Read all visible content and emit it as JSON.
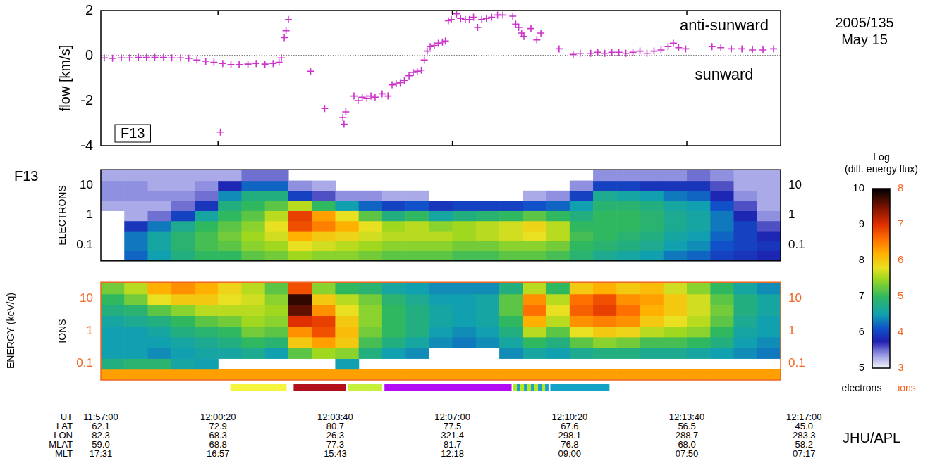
{
  "date": [
    "2005/135",
    "May 15"
  ],
  "satellite_label": "F13",
  "energy_label": "ENERGY (keV/q)",
  "credit": "JHU/APL",
  "colorbar": {
    "title": [
      "Log",
      "(diff. energy flux)"
    ]
  },
  "time_table": {
    "ticks": [
      43020,
      43220,
      43420,
      43620,
      43820,
      44020,
      44220
    ],
    "rows": [
      {
        "name": "UT",
        "labels": [
          "11:57:00",
          "12:00:20",
          "12:03:40",
          "12:07:00",
          "12:10:20",
          "12:13:40",
          "12:17:00"
        ]
      },
      {
        "name": "LAT",
        "labels": [
          "62.1",
          "72.9",
          "80.7",
          "77.5",
          "67.6",
          "56.5",
          "45.0"
        ]
      },
      {
        "name": "LON",
        "labels": [
          "82.3",
          "68.3",
          "26.3",
          "321.4",
          "298.1",
          "288.7",
          "283.3"
        ]
      },
      {
        "name": "MLAT",
        "labels": [
          "59.0",
          "68.8",
          "77.3",
          "81.7",
          "76.8",
          "68.0",
          "58.2"
        ]
      },
      {
        "name": "MLT",
        "labels": [
          "17:31",
          "16:57",
          "15:43",
          "12:18",
          "09:00",
          "07:50",
          "07:17"
        ]
      }
    ]
  },
  "chart_data": [
    {
      "type": "scatter",
      "ylabel": "flow [km/s]",
      "annotations": [
        "anti-sunward",
        "sunward"
      ],
      "hline": 0,
      "legend": "lower left",
      "grid": false,
      "tick_labels": "y",
      "xlim": [
        43020,
        44180
      ],
      "xticks": [
        43220,
        43620,
        44020
      ],
      "ylim": [
        -4,
        2
      ],
      "yticks": [
        -4,
        -2,
        0,
        2
      ],
      "series": [
        {
          "name": "F13",
          "color": "#cc33cc",
          "marker": "cross",
          "x": [
            43026,
            43040,
            43055,
            43069,
            43084,
            43098,
            43112,
            43127,
            43141,
            43156,
            43170,
            43184,
            43199,
            43213,
            43224,
            43228,
            43242,
            43256,
            43271,
            43285,
            43300,
            43314,
            43324,
            43328,
            43333,
            43336,
            43340,
            43378,
            43402,
            43433,
            43435,
            43438,
            43452,
            43459,
            43466,
            43474,
            43481,
            43488,
            43500,
            43510,
            43517,
            43524,
            43531,
            43538,
            43546,
            43553,
            43560,
            43567,
            43572,
            43577,
            43582,
            43589,
            43596,
            43603,
            43608,
            43613,
            43618,
            43620,
            43627,
            43634,
            43642,
            43649,
            43656,
            43663,
            43670,
            43678,
            43687,
            43697,
            43706,
            43723,
            43728,
            43733,
            43738,
            43742,
            43754,
            43764,
            43771,
            43802,
            43826,
            43838,
            43856,
            43868,
            43880,
            43892,
            43904,
            43916,
            43928,
            43940,
            43952,
            43964,
            43976,
            43988,
            43997,
            44006,
            44018,
            44063,
            44078,
            44096,
            44114,
            44132,
            44150,
            44168
          ],
          "values": [
            -0.1,
            -0.12,
            -0.1,
            -0.1,
            -0.08,
            -0.08,
            -0.08,
            -0.08,
            -0.1,
            -0.1,
            -0.12,
            -0.2,
            -0.25,
            -0.3,
            -3.4,
            -0.35,
            -0.4,
            -0.4,
            -0.38,
            -0.35,
            -0.38,
            -0.35,
            -0.3,
            -0.1,
            0.8,
            1.1,
            1.6,
            -0.7,
            -2.35,
            -2.75,
            -3.05,
            -2.5,
            -1.8,
            -2.0,
            -1.85,
            -1.9,
            -1.8,
            -1.85,
            -1.7,
            -1.8,
            -1.3,
            -1.25,
            -1.2,
            -1.1,
            -0.9,
            -0.75,
            -0.7,
            -0.65,
            -0.2,
            0.2,
            0.4,
            0.45,
            0.55,
            0.6,
            0.65,
            1.55,
            1.6,
            2.0,
            1.85,
            1.65,
            1.6,
            1.6,
            1.7,
            1.25,
            1.6,
            1.65,
            1.7,
            1.8,
            1.8,
            1.75,
            1.4,
            1.25,
            1.0,
            0.85,
            1.2,
            0.7,
            1.0,
            0.3,
            0.05,
            0.1,
            0.1,
            0.15,
            0.1,
            0.15,
            0.15,
            0.1,
            0.15,
            0.2,
            0.1,
            0.2,
            0.25,
            0.4,
            0.55,
            0.35,
            0.3,
            0.4,
            0.35,
            0.3,
            0.3,
            0.25,
            0.25,
            0.3
          ]
        }
      ]
    },
    {
      "type": "heatmap",
      "ylabel": "ELECTRONS",
      "color": "#000000",
      "log": "y",
      "grid": false,
      "tick_labels": "y",
      "xlim": [
        43020,
        44180
      ],
      "ylim": [
        0.03,
        32
      ],
      "yticks": [
        0.1,
        1,
        10
      ],
      "y2lim": [
        0.03,
        32
      ],
      "y2ticks": [
        0.1,
        1,
        10
      ],
      "time_edges": [
        43020,
        43060,
        43100,
        43140,
        43180,
        43220,
        43260,
        43300,
        43340,
        43380,
        43420,
        43460,
        43500,
        43540,
        43580,
        43620,
        43660,
        43700,
        43740,
        43780,
        43820,
        43860,
        43900,
        43940,
        43980,
        44020,
        44060,
        44100,
        44140,
        44180
      ],
      "energy_edges": [
        0.03,
        0.065,
        0.14,
        0.3,
        0.65,
        1.4,
        3,
        6.5,
        14,
        32
      ],
      "cells": [
        [
          null,
          null,
          null,
          null,
          null,
          5.3,
          5.4,
          5.4,
          5.3
        ],
        [
          6.2,
          6.3,
          6.3,
          5.9,
          5.3,
          5.3,
          5.4,
          5.4,
          5.3
        ],
        [
          6.5,
          6.6,
          6.6,
          6.3,
          5.5,
          5.3,
          5.4,
          5.3,
          5.3
        ],
        [
          6.8,
          6.9,
          6.9,
          6.7,
          6.0,
          5.5,
          5.4,
          5.3,
          5.3
        ],
        [
          7.0,
          7.1,
          7.1,
          7.0,
          6.6,
          5.9,
          5.5,
          5.4,
          5.3
        ],
        [
          7.0,
          7.2,
          7.3,
          7.2,
          7.0,
          6.8,
          6.4,
          5.8,
          5.3
        ],
        [
          7.2,
          7.4,
          7.5,
          7.4,
          7.2,
          7.0,
          6.8,
          6.2,
          5.5
        ],
        [
          7.3,
          7.5,
          7.7,
          7.8,
          7.6,
          7.2,
          6.8,
          6.2,
          5.5
        ],
        [
          7.5,
          7.8,
          8.2,
          8.8,
          8.9,
          7.6,
          6.0,
          5.4,
          null
        ],
        [
          7.4,
          7.7,
          8.0,
          8.5,
          8.3,
          7.0,
          5.6,
          5.3,
          null
        ],
        [
          7.4,
          7.6,
          7.9,
          8.2,
          7.8,
          6.5,
          5.4,
          null,
          null
        ],
        [
          7.3,
          7.5,
          7.7,
          7.8,
          7.2,
          6.2,
          5.4,
          null,
          null
        ],
        [
          7.2,
          7.4,
          7.6,
          7.5,
          6.8,
          6.0,
          5.3,
          null,
          null
        ],
        [
          7.2,
          7.4,
          7.6,
          7.6,
          7.0,
          6.1,
          5.3,
          null,
          null
        ],
        [
          7.2,
          7.4,
          7.6,
          7.4,
          6.6,
          5.9,
          null,
          null,
          null
        ],
        [
          7.1,
          7.3,
          7.5,
          7.5,
          6.8,
          6.0,
          null,
          null,
          null
        ],
        [
          7.1,
          7.3,
          7.6,
          7.6,
          6.9,
          6.0,
          null,
          null,
          null
        ],
        [
          7.2,
          7.4,
          7.7,
          7.7,
          7.0,
          6.0,
          null,
          null,
          null
        ],
        [
          7.2,
          7.4,
          7.8,
          7.9,
          7.2,
          6.1,
          5.3,
          null,
          null
        ],
        [
          7.1,
          7.3,
          7.6,
          7.6,
          7.0,
          6.2,
          5.4,
          null,
          null
        ],
        [
          6.9,
          7.0,
          7.1,
          7.0,
          6.8,
          6.5,
          6.0,
          5.4,
          null
        ],
        [
          6.7,
          6.9,
          7.0,
          7.0,
          7.0,
          6.9,
          6.7,
          6.0,
          5.4
        ],
        [
          6.6,
          6.8,
          6.9,
          7.0,
          7.0,
          6.9,
          6.6,
          6.0,
          5.4
        ],
        [
          6.5,
          6.7,
          6.8,
          6.9,
          6.9,
          6.8,
          6.5,
          5.9,
          5.4
        ],
        [
          6.3,
          6.5,
          6.6,
          6.7,
          6.7,
          6.6,
          6.3,
          5.9,
          5.4
        ],
        [
          6.2,
          6.4,
          6.5,
          6.6,
          6.6,
          6.5,
          6.2,
          5.9,
          5.5
        ],
        [
          6.0,
          6.1,
          6.2,
          6.3,
          6.3,
          6.1,
          5.8,
          5.6,
          5.4
        ],
        [
          5.9,
          6.0,
          6.0,
          6.0,
          5.8,
          5.6,
          5.4,
          5.3,
          5.3
        ],
        [
          5.8,
          5.9,
          5.8,
          5.6,
          5.4,
          5.3,
          5.3,
          5.3,
          5.3
        ]
      ],
      "color_range": [
        5,
        10
      ],
      "color_ticks": [
        5,
        6,
        7,
        8,
        9,
        10
      ],
      "color_label": "electrons"
    },
    {
      "type": "heatmap",
      "ylabel": "IONS",
      "color": "#f26522",
      "log": "y",
      "grid": false,
      "tick_labels": "y",
      "xlim": [
        43020,
        44180
      ],
      "ylim": [
        0.03,
        32
      ],
      "yticks": [
        0.1,
        1,
        10
      ],
      "y2lim": [
        0.03,
        32
      ],
      "y2ticks": [
        0.1,
        1,
        10
      ],
      "time_edges": [
        43020,
        43060,
        43100,
        43140,
        43180,
        43220,
        43260,
        43300,
        43340,
        43380,
        43420,
        43460,
        43500,
        43540,
        43580,
        43620,
        43660,
        43700,
        43740,
        43780,
        43820,
        43860,
        43900,
        43940,
        43980,
        44020,
        44060,
        44100,
        44140,
        44180
      ],
      "energy_edges": [
        0.03,
        0.065,
        0.14,
        0.3,
        0.65,
        1.4,
        3,
        6.5,
        14,
        32
      ],
      "cells": [
        [
          6.3,
          4.8,
          4.5,
          4.5,
          4.5,
          4.6,
          4.8,
          5.0,
          5.3
        ],
        [
          6.3,
          4.9,
          4.5,
          4.5,
          4.5,
          4.7,
          4.9,
          5.3,
          5.6
        ],
        [
          6.3,
          4.9,
          4.4,
          4.5,
          4.6,
          4.8,
          5.2,
          5.8,
          6.2
        ],
        [
          6.3,
          4.6,
          4.5,
          4.6,
          4.8,
          5.0,
          5.4,
          6.0,
          6.4
        ],
        [
          6.3,
          4.5,
          4.6,
          4.7,
          4.9,
          5.2,
          5.6,
          6.0,
          6.2
        ],
        [
          6.3,
          null,
          4.6,
          4.8,
          5.0,
          5.3,
          5.6,
          5.8,
          5.9
        ],
        [
          6.3,
          null,
          4.7,
          5.0,
          5.3,
          5.5,
          5.6,
          5.7,
          5.6
        ],
        [
          6.3,
          null,
          4.5,
          4.9,
          5.2,
          5.4,
          5.5,
          5.4,
          5.2
        ],
        [
          6.3,
          null,
          5.2,
          6.0,
          6.4,
          7.0,
          7.6,
          7.8,
          6.8
        ],
        [
          6.3,
          null,
          5.5,
          6.3,
          6.8,
          6.9,
          6.4,
          6.0,
          5.4
        ],
        [
          6.3,
          4.5,
          5.4,
          6.0,
          6.1,
          6.0,
          5.8,
          5.6,
          5.0
        ],
        [
          6.3,
          null,
          4.8,
          5.1,
          5.3,
          5.4,
          5.4,
          5.3,
          4.9
        ],
        [
          6.3,
          null,
          4.5,
          4.8,
          5.0,
          5.0,
          5.0,
          4.9,
          4.6
        ],
        [
          6.3,
          null,
          4.4,
          4.6,
          4.8,
          4.8,
          4.8,
          4.7,
          4.5
        ],
        [
          6.3,
          null,
          null,
          4.4,
          4.5,
          4.6,
          4.6,
          4.5,
          4.4
        ],
        [
          6.3,
          null,
          null,
          4.3,
          4.4,
          4.5,
          4.5,
          4.5,
          4.4
        ],
        [
          6.3,
          null,
          null,
          4.4,
          4.5,
          4.6,
          4.6,
          4.6,
          4.4
        ],
        [
          6.3,
          null,
          4.4,
          4.6,
          4.8,
          5.0,
          5.2,
          5.2,
          4.8
        ],
        [
          6.3,
          null,
          4.6,
          5.0,
          5.6,
          6.2,
          6.6,
          6.4,
          5.6
        ],
        [
          6.3,
          null,
          4.5,
          4.8,
          5.2,
          5.6,
          5.8,
          5.6,
          5.0
        ],
        [
          6.3,
          null,
          4.7,
          5.2,
          5.8,
          6.4,
          6.7,
          6.6,
          6.0
        ],
        [
          6.3,
          null,
          4.8,
          5.4,
          6.0,
          6.5,
          6.9,
          6.8,
          6.2
        ],
        [
          6.3,
          null,
          4.8,
          5.3,
          5.9,
          6.4,
          6.6,
          6.4,
          6.0
        ],
        [
          6.3,
          null,
          4.7,
          5.1,
          5.6,
          6.0,
          6.2,
          6.3,
          6.1
        ],
        [
          6.3,
          null,
          4.7,
          5.1,
          5.5,
          5.8,
          6.0,
          6.0,
          5.7
        ],
        [
          6.3,
          null,
          4.6,
          5.0,
          5.4,
          5.6,
          5.7,
          5.7,
          5.4
        ],
        [
          6.3,
          null,
          4.5,
          4.8,
          5.0,
          5.2,
          5.3,
          5.2,
          5.0
        ],
        [
          6.3,
          null,
          4.4,
          4.5,
          4.6,
          4.7,
          4.8,
          4.8,
          4.6
        ],
        [
          6.3,
          null,
          4.3,
          4.4,
          4.5,
          4.5,
          4.6,
          4.6,
          4.4
        ]
      ],
      "color_range": [
        3,
        8
      ],
      "color_ticks": [
        3,
        4,
        5,
        6,
        7,
        8
      ],
      "color_label": "ions",
      "regions": [
        {
          "start": 43241,
          "end": 43337,
          "color": "#f5f53d"
        },
        {
          "start": 43349,
          "end": 43438,
          "color": "#b3101e"
        },
        {
          "start": 43442,
          "end": 43500,
          "color": "#c6f03c"
        },
        {
          "start": 43504,
          "end": 43721,
          "color": "#b20cf5"
        },
        {
          "start": 43724,
          "end": 43784,
          "colors": [
            "#b5e61d",
            "#1c9fd0"
          ]
        },
        {
          "start": 43787,
          "end": 43888,
          "color": "#14a3c7"
        }
      ]
    }
  ]
}
